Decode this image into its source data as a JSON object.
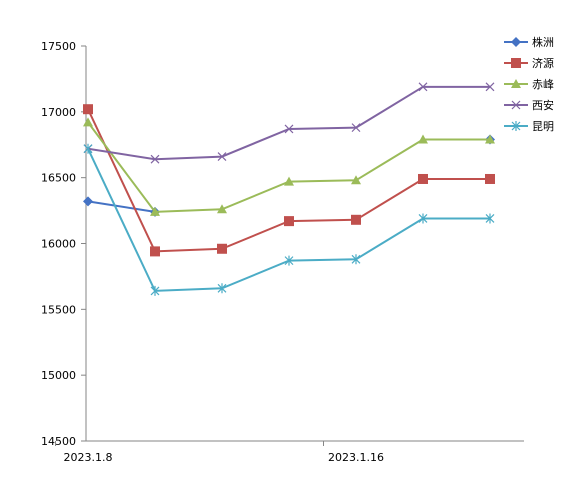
{
  "chart_data": {
    "type": "line",
    "x": [
      "2023.1.8",
      "",
      "",
      "",
      "2023.1.16",
      "",
      ""
    ],
    "x_tick_labels_shown": [
      "2023.1.8",
      "2023.1.16"
    ],
    "ylim": [
      14500,
      17500
    ],
    "y_ticks": [
      14500,
      15000,
      15500,
      16000,
      16500,
      17000,
      17500
    ],
    "grid": false,
    "legend_position": "right",
    "series": [
      {
        "name": "株洲",
        "color": "#4472C4",
        "marker": "diamond",
        "values": [
          16320,
          16240,
          null,
          null,
          null,
          null,
          16790
        ]
      },
      {
        "name": "济源",
        "color": "#C0504D",
        "marker": "square",
        "values": [
          17020,
          15940,
          15960,
          16170,
          16180,
          16490,
          16490
        ]
      },
      {
        "name": "赤峰",
        "color": "#9BBB59",
        "marker": "triangle",
        "values": [
          16920,
          16240,
          16260,
          16470,
          16480,
          16790,
          16790
        ]
      },
      {
        "name": "西安",
        "color": "#8064A2",
        "marker": "x",
        "values": [
          16720,
          16640,
          16660,
          16870,
          16880,
          17190,
          17190
        ]
      },
      {
        "name": "昆明",
        "color": "#4BACC6",
        "marker": "star",
        "values": [
          16720,
          15640,
          15660,
          15870,
          15880,
          16190,
          16190
        ]
      }
    ]
  }
}
